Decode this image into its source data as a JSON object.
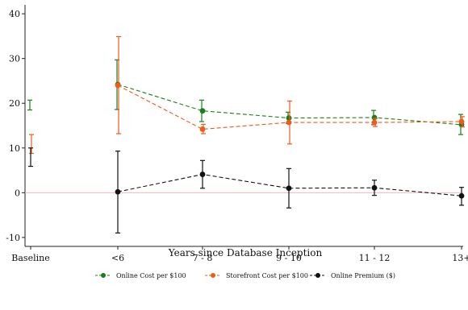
{
  "chart_data": {
    "type": "line",
    "title": "",
    "xlabel": "Years since Database Inception",
    "ylabel": "",
    "ylim": [
      -12,
      42
    ],
    "yticks": [
      -10,
      0,
      10,
      20,
      30,
      40
    ],
    "categories": [
      "Baseline",
      "<6",
      "7 - 8",
      "9 - 10",
      "11 - 12",
      "13+"
    ],
    "grid": false,
    "zero_reference_line": true,
    "legend_position": "bottom",
    "series": [
      {
        "name": "Online Cost per $100",
        "color": "#1a7f1a",
        "points": [
          {
            "category": "Baseline",
            "value": null,
            "low": 18.5,
            "high": 20.7
          },
          {
            "category": "<6",
            "value": 24.2,
            "low": 18.6,
            "high": 29.7
          },
          {
            "category": "7 - 8",
            "value": 18.3,
            "low": 15.9,
            "high": 20.7
          },
          {
            "category": "9 - 10",
            "value": 16.7,
            "low": 15.5,
            "high": 18.0
          },
          {
            "category": "11 - 12",
            "value": 16.8,
            "low": 15.2,
            "high": 18.4
          },
          {
            "category": "13+",
            "value": 15.2,
            "low": 13.0,
            "high": 17.5
          }
        ]
      },
      {
        "name": "Storefront Cost per $100",
        "color": "#f05a1a",
        "points": [
          {
            "category": "Baseline",
            "value": null,
            "low": 8.8,
            "high": 13.0
          },
          {
            "category": "<6",
            "value": 24.0,
            "low": 13.2,
            "high": 34.9
          },
          {
            "category": "7 - 8",
            "value": 14.2,
            "low": 13.2,
            "high": 15.3
          },
          {
            "category": "9 - 10",
            "value": 15.7,
            "low": 10.9,
            "high": 20.5
          },
          {
            "category": "11 - 12",
            "value": 15.7,
            "low": 14.8,
            "high": 16.6
          },
          {
            "category": "13+",
            "value": 15.9,
            "low": 14.7,
            "high": 17.0
          }
        ]
      },
      {
        "name": "Online Premium ($)",
        "color": "#111111",
        "points": [
          {
            "category": "Baseline",
            "value": null,
            "low": 5.9,
            "high": 10.0
          },
          {
            "category": "<6",
            "value": 0.2,
            "low": -9.0,
            "high": 9.3
          },
          {
            "category": "7 - 8",
            "value": 4.1,
            "low": 1.0,
            "high": 7.2
          },
          {
            "category": "9 - 10",
            "value": 1.0,
            "low": -3.4,
            "high": 5.4
          },
          {
            "category": "11 - 12",
            "value": 1.1,
            "low": -0.6,
            "high": 2.8
          },
          {
            "category": "13+",
            "value": -0.7,
            "low": -2.8,
            "high": 1.2
          }
        ]
      }
    ]
  }
}
